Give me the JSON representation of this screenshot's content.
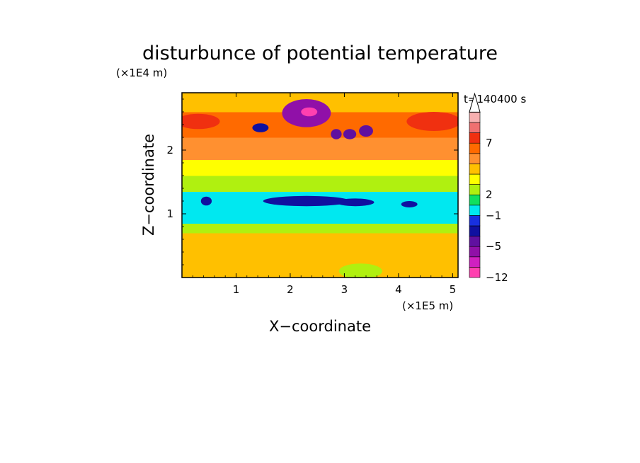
{
  "chart_data": {
    "type": "heatmap",
    "title": "disturbunce of potential temperature",
    "time_label": "t=140400 s",
    "xlabel": "X−coordinate",
    "ylabel": "Z−coordinate",
    "x_unit": "(×1E5 m)",
    "y_unit": "(×1E4 m)",
    "xlim": [
      0,
      5.1
    ],
    "ylim": [
      0,
      2.9
    ],
    "x_ticks": [
      {
        "value": 1,
        "label": "1"
      },
      {
        "value": 2,
        "label": "2"
      },
      {
        "value": 3,
        "label": "3"
      },
      {
        "value": 4,
        "label": "4"
      },
      {
        "value": 5,
        "label": "5"
      }
    ],
    "y_ticks": [
      {
        "value": 1,
        "label": "1"
      },
      {
        "value": 2,
        "label": "2"
      }
    ],
    "colorbar": {
      "colors": [
        "#ff40b0",
        "#d020c0",
        "#9010a8",
        "#6010a0",
        "#1010a0",
        "#1830e0",
        "#00e8f0",
        "#10e060",
        "#b0f010",
        "#ffff00",
        "#ffc000",
        "#ff9030",
        "#ff6a00",
        "#f03010",
        "#f07070",
        "#f8b0b0"
      ],
      "labels": [
        {
          "value": "7",
          "level": 13
        },
        {
          "value": "2",
          "level": 8
        },
        {
          "value": "−1",
          "level": 6
        },
        {
          "value": "−5",
          "level": 3
        },
        {
          "value": "−12",
          "level": 0
        }
      ]
    },
    "field_bands": [
      {
        "z": [
          0.0,
          0.2
        ],
        "value": 2
      },
      {
        "z": [
          0.2,
          0.7
        ],
        "value": 2
      },
      {
        "z": [
          0.7,
          0.85
        ],
        "value": 0
      },
      {
        "z": [
          0.85,
          1.35
        ],
        "value": -2
      },
      {
        "z": [
          1.35,
          1.6
        ],
        "value": 0
      },
      {
        "z": [
          1.6,
          1.85
        ],
        "value": 1
      },
      {
        "z": [
          1.85,
          2.2
        ],
        "value": 3
      },
      {
        "z": [
          2.2,
          2.6
        ],
        "value": 4
      },
      {
        "z": [
          2.6,
          2.9
        ],
        "value": 2
      }
    ],
    "field_features": [
      {
        "x": 2.3,
        "z": 2.58,
        "rx": 0.45,
        "rz": 0.22,
        "value": -6
      },
      {
        "x": 2.35,
        "z": 2.6,
        "rx": 0.15,
        "rz": 0.07,
        "value": -9
      },
      {
        "x": 1.45,
        "z": 2.35,
        "rx": 0.15,
        "rz": 0.07,
        "value": -4
      },
      {
        "x": 3.1,
        "z": 2.25,
        "rx": 0.12,
        "rz": 0.08,
        "value": -5
      },
      {
        "x": 2.85,
        "z": 2.25,
        "rx": 0.1,
        "rz": 0.08,
        "value": -5
      },
      {
        "x": 3.4,
        "z": 2.3,
        "rx": 0.13,
        "rz": 0.09,
        "value": -5
      },
      {
        "x": 4.65,
        "z": 2.45,
        "rx": 0.5,
        "rz": 0.15,
        "value": 5
      },
      {
        "x": 0.3,
        "z": 2.45,
        "rx": 0.4,
        "rz": 0.12,
        "value": 5
      },
      {
        "x": 2.3,
        "z": 1.2,
        "rx": 0.8,
        "rz": 0.08,
        "value": -4
      },
      {
        "x": 0.45,
        "z": 1.2,
        "rx": 0.1,
        "rz": 0.07,
        "value": -4
      },
      {
        "x": 3.2,
        "z": 1.18,
        "rx": 0.35,
        "rz": 0.06,
        "value": -4
      },
      {
        "x": 4.2,
        "z": 1.15,
        "rx": 0.15,
        "rz": 0.05,
        "value": -4
      },
      {
        "x": 3.3,
        "z": 0.1,
        "rx": 0.4,
        "rz": 0.12,
        "value": 0
      }
    ]
  }
}
